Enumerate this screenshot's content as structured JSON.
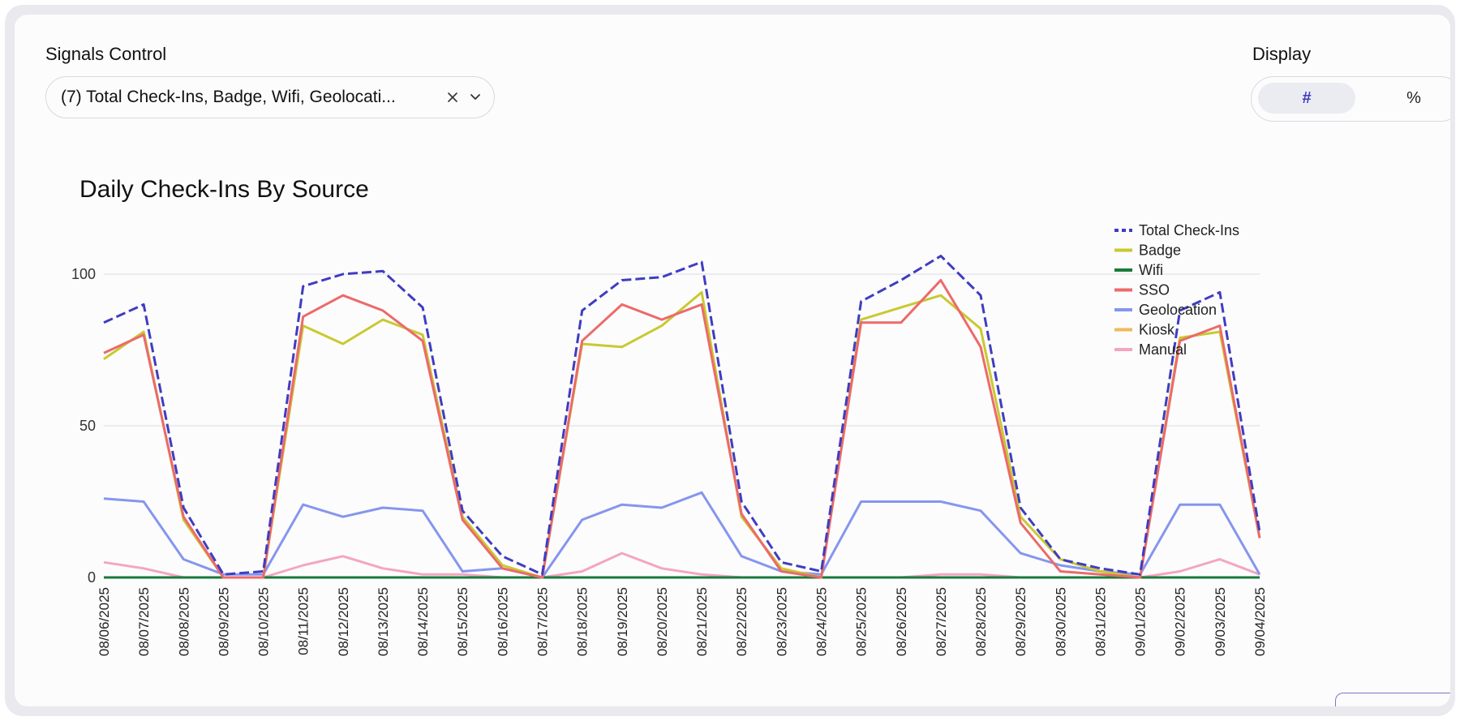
{
  "controls": {
    "signals_label": "Signals Control",
    "signals_value": "(7) Total Check-Ins, Badge, Wifi, Geolocati...",
    "display_label": "Display",
    "display_options": [
      "#",
      "%"
    ],
    "display_selected": "#"
  },
  "icons": {
    "clear": "close-icon",
    "dropdown": "chevron-down-icon"
  },
  "chart_data": {
    "type": "line",
    "title": "Daily Check-Ins By Source",
    "xlabel": "",
    "ylabel": "",
    "ylim": [
      0,
      100
    ],
    "yticks": [
      0,
      50,
      100
    ],
    "grid": true,
    "legend_position": "right",
    "categories": [
      "08/06/2025",
      "08/07/2025",
      "08/08/2025",
      "08/09/2025",
      "08/10/2025",
      "08/11/2025",
      "08/12/2025",
      "08/13/2025",
      "08/14/2025",
      "08/15/2025",
      "08/16/2025",
      "08/17/2025",
      "08/18/2025",
      "08/19/2025",
      "08/20/2025",
      "08/21/2025",
      "08/22/2025",
      "08/23/2025",
      "08/24/2025",
      "08/25/2025",
      "08/26/2025",
      "08/27/2025",
      "08/28/2025",
      "08/29/2025",
      "08/30/2025",
      "08/31/2025",
      "09/01/2025",
      "09/02/2025",
      "09/03/2025",
      "09/04/2025"
    ],
    "series": [
      {
        "name": "Total Check-Ins",
        "color": "#3f3dc0",
        "dashed": true,
        "values": [
          84,
          90,
          23,
          1,
          2,
          96,
          100,
          101,
          89,
          22,
          7,
          1,
          88,
          98,
          99,
          104,
          25,
          5,
          2,
          91,
          98,
          106,
          93,
          23,
          6,
          3,
          1,
          88,
          94,
          15
        ]
      },
      {
        "name": "Badge",
        "color": "#c9c930",
        "dashed": false,
        "values": [
          72,
          81,
          19,
          0,
          0,
          83,
          77,
          85,
          80,
          20,
          4,
          0,
          77,
          76,
          83,
          94,
          20,
          3,
          0,
          85,
          89,
          93,
          82,
          20,
          6,
          2,
          0,
          79,
          81,
          13
        ]
      },
      {
        "name": "Wifi",
        "color": "#1a7a3a",
        "dashed": false,
        "values": [
          0,
          0,
          0,
          0,
          0,
          0,
          0,
          0,
          0,
          0,
          0,
          0,
          0,
          0,
          0,
          0,
          0,
          0,
          0,
          0,
          0,
          0,
          0,
          0,
          0,
          0,
          0,
          0,
          0,
          0
        ]
      },
      {
        "name": "SSO",
        "color": "#ec6a6a",
        "dashed": false,
        "values": [
          74,
          80,
          20,
          0,
          0,
          86,
          93,
          88,
          78,
          19,
          3,
          0,
          78,
          90,
          85,
          90,
          21,
          2,
          0,
          84,
          84,
          98,
          76,
          18,
          2,
          1,
          0,
          78,
          83,
          13
        ]
      },
      {
        "name": "Geolocation",
        "color": "#8596ee",
        "dashed": false,
        "values": [
          26,
          25,
          6,
          1,
          1,
          24,
          20,
          23,
          22,
          2,
          3,
          0,
          19,
          24,
          23,
          28,
          7,
          2,
          1,
          25,
          25,
          25,
          22,
          8,
          4,
          2,
          1,
          24,
          24,
          1
        ]
      },
      {
        "name": "Kiosk",
        "color": "#f2b85a",
        "dashed": false,
        "values": [
          0,
          0,
          0,
          0,
          0,
          0,
          0,
          0,
          0,
          0,
          0,
          0,
          0,
          0,
          0,
          0,
          0,
          0,
          0,
          0,
          0,
          0,
          0,
          0,
          0,
          0,
          0,
          0,
          0,
          0
        ]
      },
      {
        "name": "Manual",
        "color": "#f4a6bf",
        "dashed": false,
        "values": [
          5,
          3,
          0,
          0,
          0,
          4,
          7,
          3,
          1,
          1,
          0,
          0,
          2,
          8,
          3,
          1,
          0,
          0,
          0,
          0,
          0,
          1,
          1,
          0,
          0,
          0,
          0,
          2,
          6,
          1
        ]
      }
    ]
  }
}
